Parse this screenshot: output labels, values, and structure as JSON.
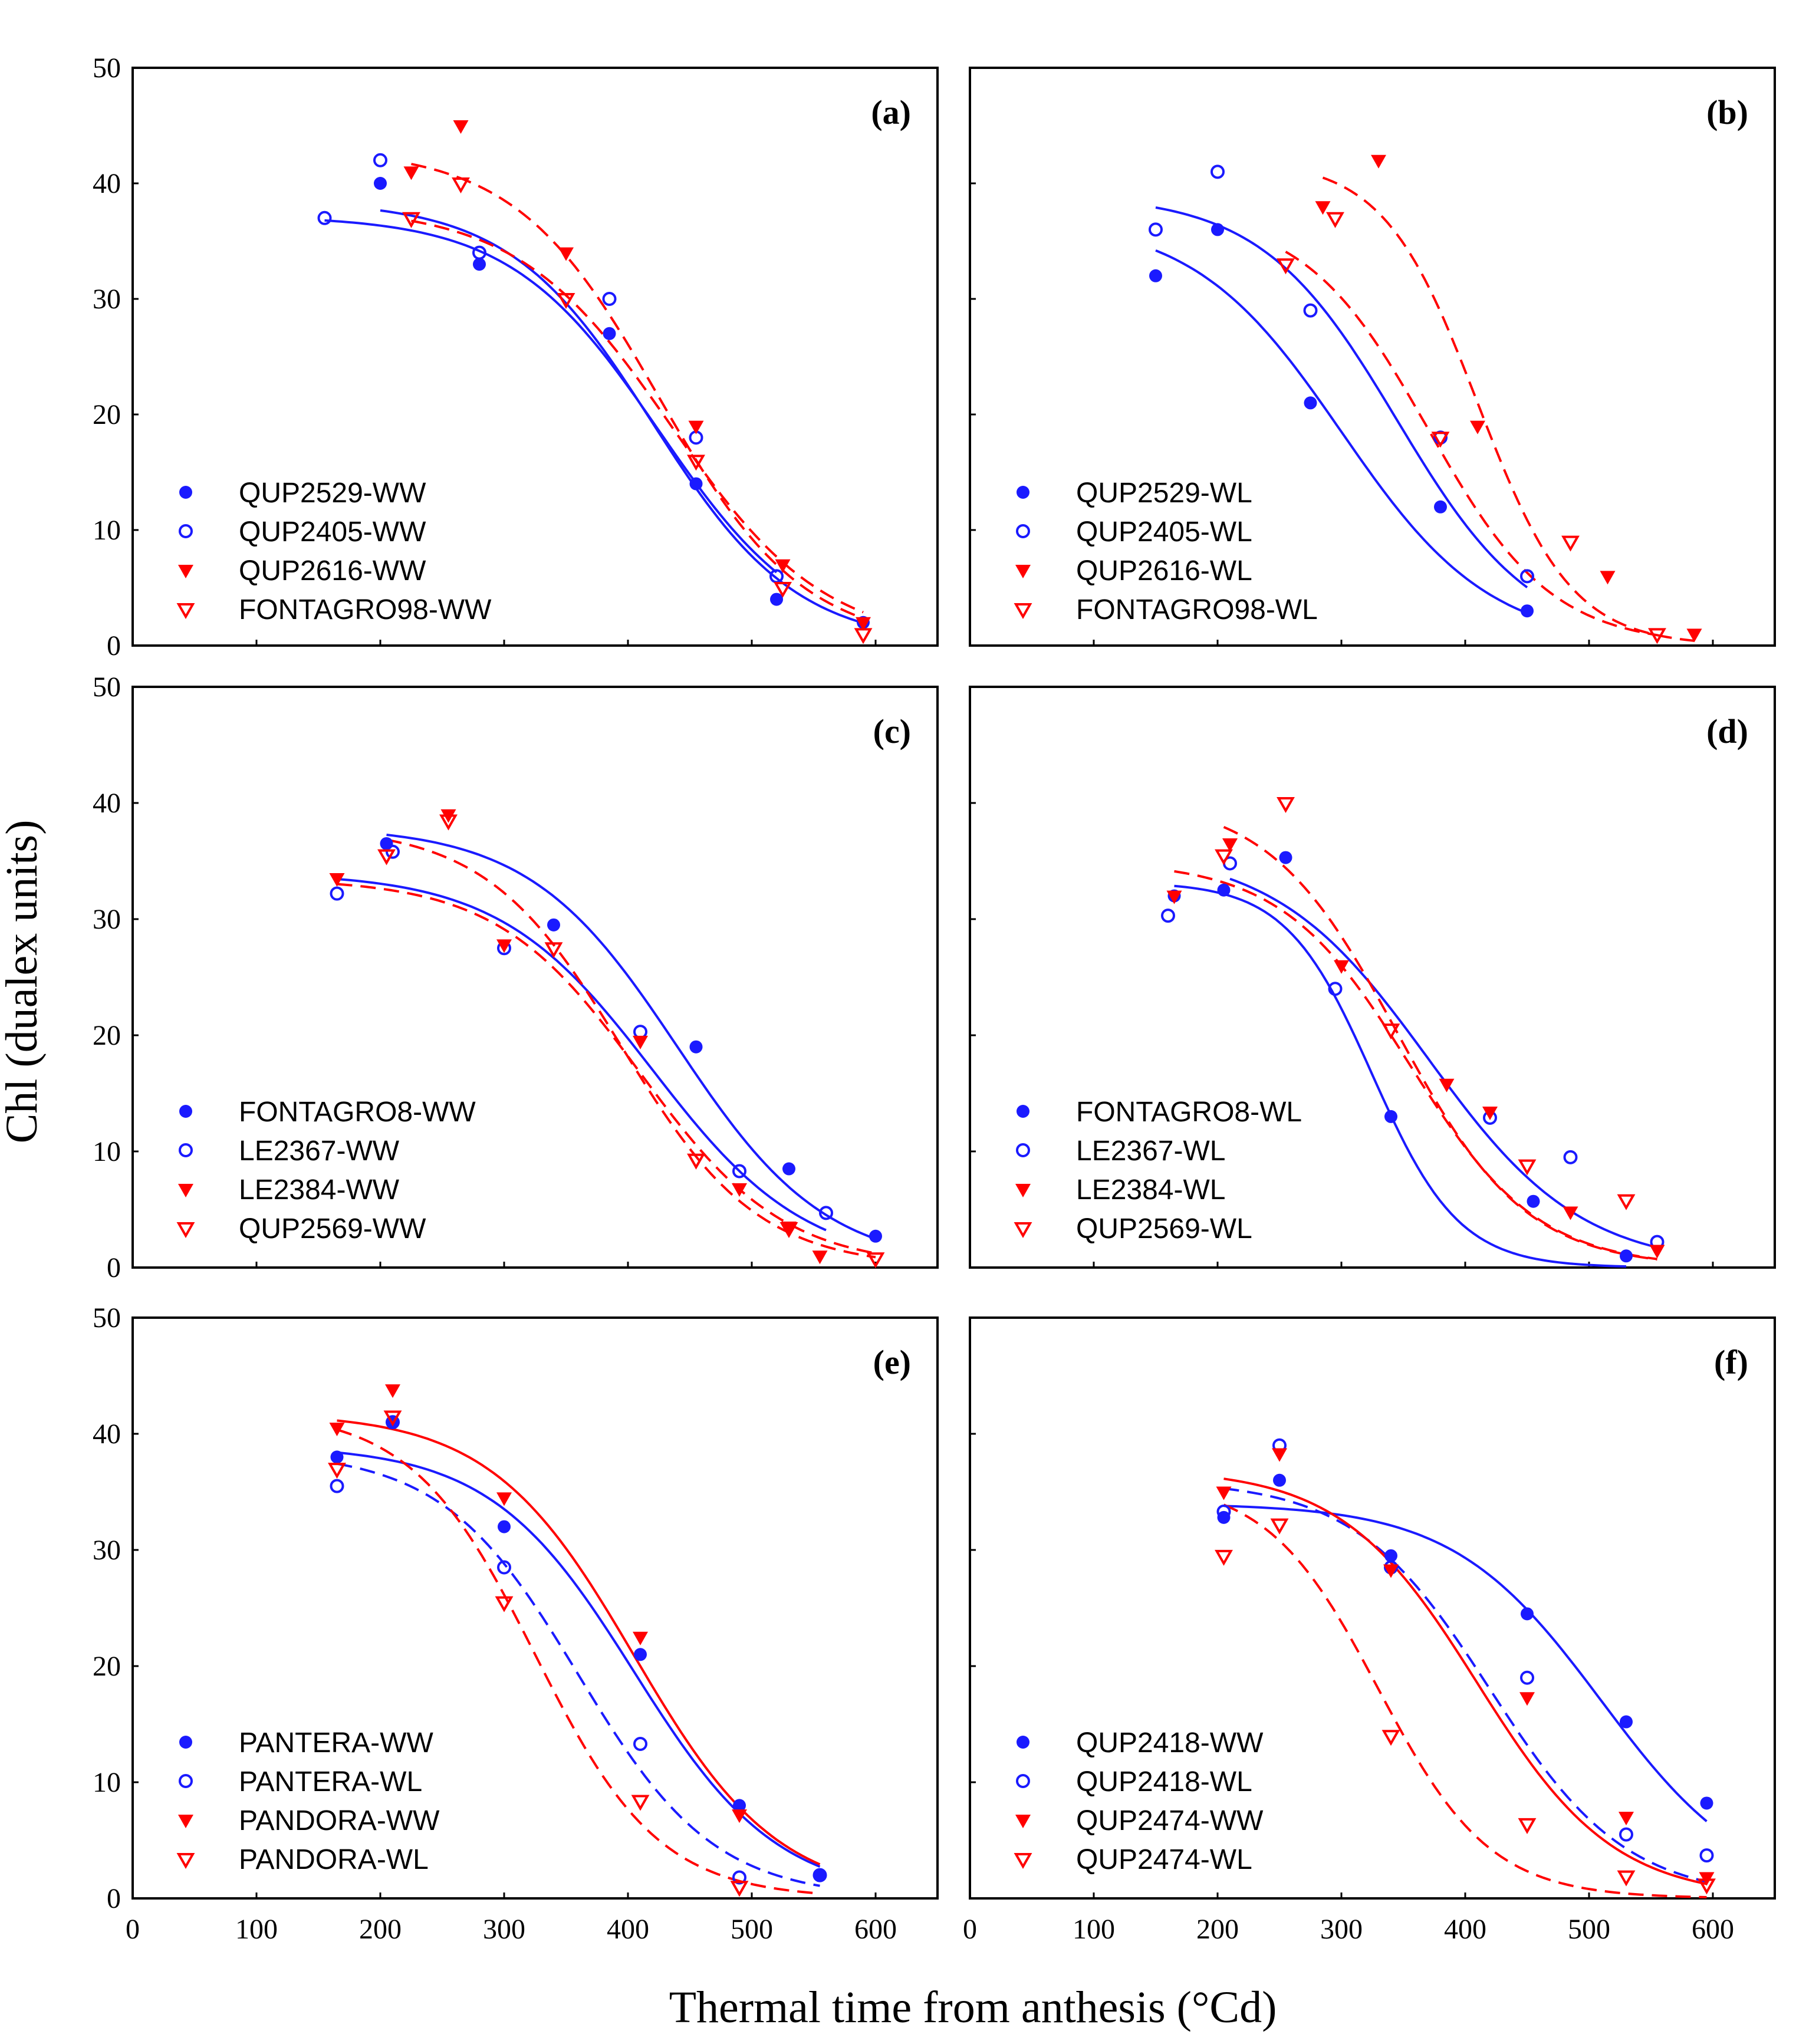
{
  "figure": {
    "ylabel": "Chl (dualex units)",
    "xlabel": "Thermal time from anthesis (°Cd)"
  },
  "colors": {
    "blue": "#1a1aff",
    "red": "#ff0000"
  },
  "chart_data": [
    {
      "panel": "(a)",
      "type": "scatter",
      "xlim": [
        0,
        650
      ],
      "ylim": [
        0,
        50
      ],
      "xticks": [
        0,
        100,
        200,
        300,
        400,
        500,
        600
      ],
      "yticks": [
        0,
        10,
        20,
        30,
        40,
        50
      ],
      "series": [
        {
          "name": "QUP2529-WW",
          "color": "blue",
          "marker": "filled-circle",
          "line": "solid",
          "x": [
            200,
            280,
            385,
            455,
            520,
            590
          ],
          "y": [
            40,
            33,
            27,
            14,
            4,
            2
          ],
          "fit": {
            "ymax": 38.5,
            "t50": 420,
            "k": 58
          }
        },
        {
          "name": "QUP2405-WW",
          "color": "blue",
          "marker": "open-circle",
          "line": "solid",
          "x": [
            155,
            200,
            280,
            385,
            455,
            520
          ],
          "y": [
            37,
            42,
            34,
            30,
            18,
            6
          ],
          "fit": {
            "ymax": 37.2,
            "t50": 425,
            "k": 60
          }
        },
        {
          "name": "QUP2616-WW",
          "color": "red",
          "marker": "filled-triangle",
          "line": "dashed",
          "x": [
            225,
            265,
            350,
            455,
            525,
            590
          ],
          "y": [
            41,
            45,
            34,
            19,
            7,
            2
          ],
          "fit": {
            "ymax": 43,
            "t50": 425,
            "k": 58
          }
        },
        {
          "name": "FONTAGRO98-WW",
          "color": "red",
          "marker": "open-triangle",
          "line": "dashed",
          "x": [
            225,
            265,
            350,
            455,
            525,
            590
          ],
          "y": [
            37,
            40,
            30,
            16,
            5,
            1
          ],
          "fit": {
            "ymax": 38,
            "t50": 435,
            "k": 62
          }
        }
      ]
    },
    {
      "panel": "(b)",
      "type": "scatter",
      "xlim": [
        0,
        650
      ],
      "ylim": [
        0,
        50
      ],
      "xticks": [
        0,
        100,
        200,
        300,
        400,
        500,
        600
      ],
      "yticks": [
        0,
        10,
        20,
        30,
        40,
        50
      ],
      "series": [
        {
          "name": "QUP2529-WL",
          "color": "blue",
          "marker": "filled-circle",
          "line": "solid",
          "x": [
            150,
            200,
            275,
            380,
            450
          ],
          "y": [
            32,
            36,
            21,
            12,
            3
          ],
          "fit": {
            "ymax": 37,
            "t50": 300,
            "k": 60
          }
        },
        {
          "name": "QUP2405-WL",
          "color": "blue",
          "marker": "open-circle",
          "line": "solid",
          "x": [
            150,
            200,
            275,
            380,
            450
          ],
          "y": [
            36,
            41,
            29,
            18,
            6
          ],
          "fit": {
            "ymax": 39,
            "t50": 345,
            "k": 55
          }
        },
        {
          "name": "QUP2616-WL",
          "color": "red",
          "marker": "filled-triangle",
          "line": "dashed",
          "x": [
            285,
            330,
            410,
            515,
            585
          ],
          "y": [
            38,
            42,
            19,
            6,
            1
          ],
          "fit": {
            "ymax": 42,
            "t50": 410,
            "k": 38
          }
        },
        {
          "name": "FONTAGRO98-WL",
          "color": "red",
          "marker": "open-triangle",
          "line": "dashed",
          "x": [
            255,
            295,
            380,
            485,
            555
          ],
          "y": [
            33,
            37,
            18,
            9,
            1
          ],
          "fit": {
            "ymax": 37.5,
            "t50": 370,
            "k": 50
          }
        }
      ]
    },
    {
      "panel": "(c)",
      "type": "scatter",
      "xlim": [
        0,
        650
      ],
      "ylim": [
        0,
        50
      ],
      "xticks": [
        0,
        100,
        200,
        300,
        400,
        500,
        600
      ],
      "yticks": [
        0,
        10,
        20,
        30,
        40,
        50
      ],
      "series": [
        {
          "name": "FONTAGRO8-WW",
          "color": "blue",
          "marker": "filled-circle",
          "line": "solid",
          "x": [
            205,
            340,
            455,
            530,
            600
          ],
          "y": [
            36.5,
            29.5,
            19,
            8.5,
            2.7
          ],
          "fit": {
            "ymax": 38,
            "t50": 440,
            "k": 60,
            "x0": 205,
            "x1": 600
          }
        },
        {
          "name": "LE2367-WW",
          "color": "blue",
          "marker": "open-circle",
          "line": "solid",
          "x": [
            165,
            210,
            300,
            410,
            490,
            560
          ],
          "y": [
            32.2,
            35.8,
            27.5,
            20.3,
            8.3,
            4.7
          ],
          "fit": {
            "ymax": 34,
            "t50": 420,
            "k": 62,
            "x0": 165,
            "x1": 560
          }
        },
        {
          "name": "LE2384-WW",
          "color": "red",
          "marker": "filled-triangle",
          "line": "dashed",
          "x": [
            165,
            255,
            300,
            410,
            490,
            530,
            555
          ],
          "y": [
            33.5,
            39,
            27.8,
            19.5,
            6.8,
            3.5,
            1
          ],
          "fit": {
            "ymax": 33.5,
            "t50": 410,
            "k": 58,
            "x0": 165,
            "x1": 600
          }
        },
        {
          "name": "QUP2569-WW",
          "color": "red",
          "marker": "open-triangle",
          "line": "dashed",
          "x": [
            205,
            255,
            340,
            455,
            530,
            600
          ],
          "y": [
            35.5,
            38.5,
            27.5,
            9.3,
            3.4,
            0.8
          ],
          "fit": {
            "ymax": 38,
            "t50": 395,
            "k": 55,
            "x0": 205,
            "x1": 600
          }
        }
      ]
    },
    {
      "panel": "(d)",
      "type": "scatter",
      "xlim": [
        0,
        650
      ],
      "ylim": [
        0,
        50
      ],
      "xticks": [
        0,
        100,
        200,
        300,
        400,
        500,
        600
      ],
      "yticks": [
        0,
        10,
        20,
        30,
        40,
        50
      ],
      "series": [
        {
          "name": "FONTAGRO8-WL",
          "color": "blue",
          "marker": "filled-circle",
          "line": "solid",
          "x": [
            165,
            205,
            255,
            340,
            455,
            530
          ],
          "y": [
            32,
            32.5,
            35.3,
            13,
            5.7,
            1
          ],
          "fit": {
            "ymax": 33.2,
            "t50": 325,
            "k": 35,
            "x0": 165,
            "x1": 530
          }
        },
        {
          "name": "LE2367-WL",
          "color": "blue",
          "marker": "open-circle",
          "line": "solid",
          "x": [
            160,
            210,
            295,
            420,
            485,
            555
          ],
          "y": [
            30.3,
            34.8,
            24,
            12.9,
            9.5,
            2.2
          ],
          "fit": {
            "ymax": 36,
            "t50": 370,
            "k": 62,
            "x0": 210,
            "x1": 555
          }
        },
        {
          "name": "LE2384-WL",
          "color": "red",
          "marker": "filled-triangle",
          "line": "dashed",
          "x": [
            165,
            210,
            300,
            385,
            420,
            485,
            555
          ],
          "y": [
            32,
            36.5,
            26,
            15.8,
            13.4,
            4.8,
            1.5
          ],
          "fit": {
            "ymax": 35,
            "t50": 355,
            "k": 52,
            "x0": 165,
            "x1": 555
          }
        },
        {
          "name": "QUP2569-WL",
          "color": "red",
          "marker": "open-triangle",
          "line": "dashed",
          "x": [
            205,
            255,
            340,
            450,
            530
          ],
          "y": [
            35.5,
            40,
            20.5,
            8.8,
            5.8
          ],
          "fit": {
            "ymax": 40.5,
            "t50": 345,
            "k": 52,
            "x0": 205,
            "x1": 555
          }
        }
      ]
    },
    {
      "panel": "(e)",
      "type": "scatter",
      "xlim": [
        0,
        650
      ],
      "ylim": [
        0,
        50
      ],
      "xticks": [
        0,
        100,
        200,
        300,
        400,
        500,
        600
      ],
      "yticks": [
        0,
        10,
        20,
        30,
        40,
        50
      ],
      "series": [
        {
          "name": "PANTERA-WW",
          "color": "blue",
          "marker": "filled-circle",
          "line": "solid",
          "x": [
            165,
            210,
            300,
            410,
            490,
            555
          ],
          "y": [
            38,
            41,
            32,
            21,
            8,
            2
          ],
          "fit": {
            "ymax": 39,
            "t50": 405,
            "k": 58,
            "x0": 165,
            "x1": 555
          }
        },
        {
          "name": "PANTERA-WL",
          "color": "blue",
          "marker": "open-circle",
          "line": "dashed",
          "x": [
            165,
            210,
            300,
            410,
            490,
            555
          ],
          "y": [
            35.5,
            41,
            28.5,
            13.3,
            1.8,
            2
          ],
          "fit": {
            "ymax": 38.5,
            "t50": 360,
            "k": 55,
            "x0": 165,
            "x1": 555
          }
        },
        {
          "name": "PANDORA-WW",
          "color": "red",
          "marker": "filled-triangle",
          "line": "solid",
          "x": [
            165,
            210,
            300,
            410,
            490
          ],
          "y": [
            40.5,
            43.8,
            34.5,
            22.5,
            7.2
          ],
          "fit": {
            "ymax": 41.8,
            "t50": 405,
            "k": 58,
            "x0": 165,
            "x1": 555
          }
        },
        {
          "name": "PANDORA-WL",
          "color": "red",
          "marker": "open-triangle",
          "line": "dashed",
          "x": [
            165,
            210,
            300,
            410,
            490
          ],
          "y": [
            37,
            41.5,
            25.5,
            8.4,
            1
          ],
          "fit": {
            "ymax": 42,
            "t50": 325,
            "k": 50,
            "x0": 165,
            "x1": 555
          }
        }
      ]
    },
    {
      "panel": "(f)",
      "type": "scatter",
      "xlim": [
        0,
        650
      ],
      "ylim": [
        0,
        50
      ],
      "xticks": [
        0,
        100,
        200,
        300,
        400,
        500,
        600
      ],
      "yticks": [
        0,
        10,
        20,
        30,
        40,
        50
      ],
      "series": [
        {
          "name": "QUP2418-WW",
          "color": "blue",
          "marker": "filled-circle",
          "line": "solid",
          "x": [
            205,
            250,
            340,
            450,
            530,
            595
          ],
          "y": [
            32.8,
            36,
            29.5,
            24.5,
            15.2,
            8.2
          ],
          "fit": {
            "ymax": 34,
            "t50": 510,
            "k": 60,
            "x0": 205,
            "x1": 595
          }
        },
        {
          "name": "QUP2418-WL",
          "color": "blue",
          "marker": "open-circle",
          "line": "dashed",
          "x": [
            205,
            250,
            340,
            450,
            530,
            595
          ],
          "y": [
            33.3,
            39,
            28.5,
            19,
            5.5,
            3.7
          ],
          "fit": {
            "ymax": 36,
            "t50": 420,
            "k": 55,
            "x0": 205,
            "x1": 595
          }
        },
        {
          "name": "QUP2474-WW",
          "color": "red",
          "marker": "filled-triangle",
          "line": "solid",
          "x": [
            205,
            250,
            340,
            450,
            530,
            595
          ],
          "y": [
            35,
            38.3,
            28.3,
            17.3,
            7,
            1.8
          ],
          "fit": {
            "ymax": 37,
            "t50": 410,
            "k": 55,
            "x0": 205,
            "x1": 595
          }
        },
        {
          "name": "QUP2474-WL",
          "color": "red",
          "marker": "open-triangle",
          "line": "dashed",
          "x": [
            205,
            250,
            340,
            450,
            530,
            595
          ],
          "y": [
            29.5,
            32.2,
            14,
            6.4,
            1.9,
            1.2
          ],
          "fit": {
            "ymax": 36,
            "t50": 330,
            "k": 45,
            "x0": 205,
            "x1": 595
          }
        }
      ]
    }
  ]
}
